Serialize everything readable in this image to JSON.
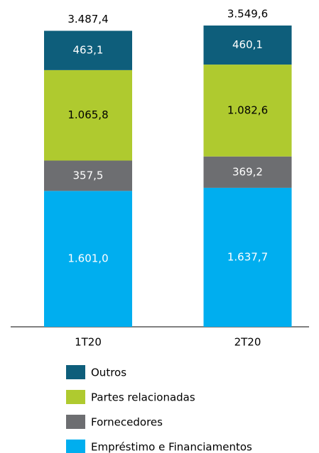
{
  "chart_data": {
    "type": "stacked_bar",
    "categories": [
      "1T20",
      "2T20"
    ],
    "series": [
      {
        "name": "Empréstimo e Financiamentos",
        "color": "#00aeef",
        "label_color": "#ffffff",
        "values": [
          1601.0,
          1637.7
        ],
        "value_labels": [
          "1.601,0",
          "1.637,7"
        ]
      },
      {
        "name": "Fornecedores",
        "color": "#6d6e71",
        "label_color": "#ffffff",
        "values": [
          357.5,
          369.2
        ],
        "value_labels": [
          "357,5",
          "369,2"
        ]
      },
      {
        "name": "Partes relacionadas",
        "color": "#afca2f",
        "label_color": "#000000",
        "values": [
          1065.8,
          1082.6
        ],
        "value_labels": [
          "1.065,8",
          "1.082,6"
        ]
      },
      {
        "name": "Outros",
        "color": "#0e5e7b",
        "label_color": "#ffffff",
        "values": [
          463.1,
          460.1
        ],
        "value_labels": [
          "463,1",
          "460,1"
        ]
      }
    ],
    "totals": {
      "values": [
        3487.4,
        3549.6
      ],
      "value_labels": [
        "3.487,4",
        "3.549,6"
      ]
    }
  }
}
